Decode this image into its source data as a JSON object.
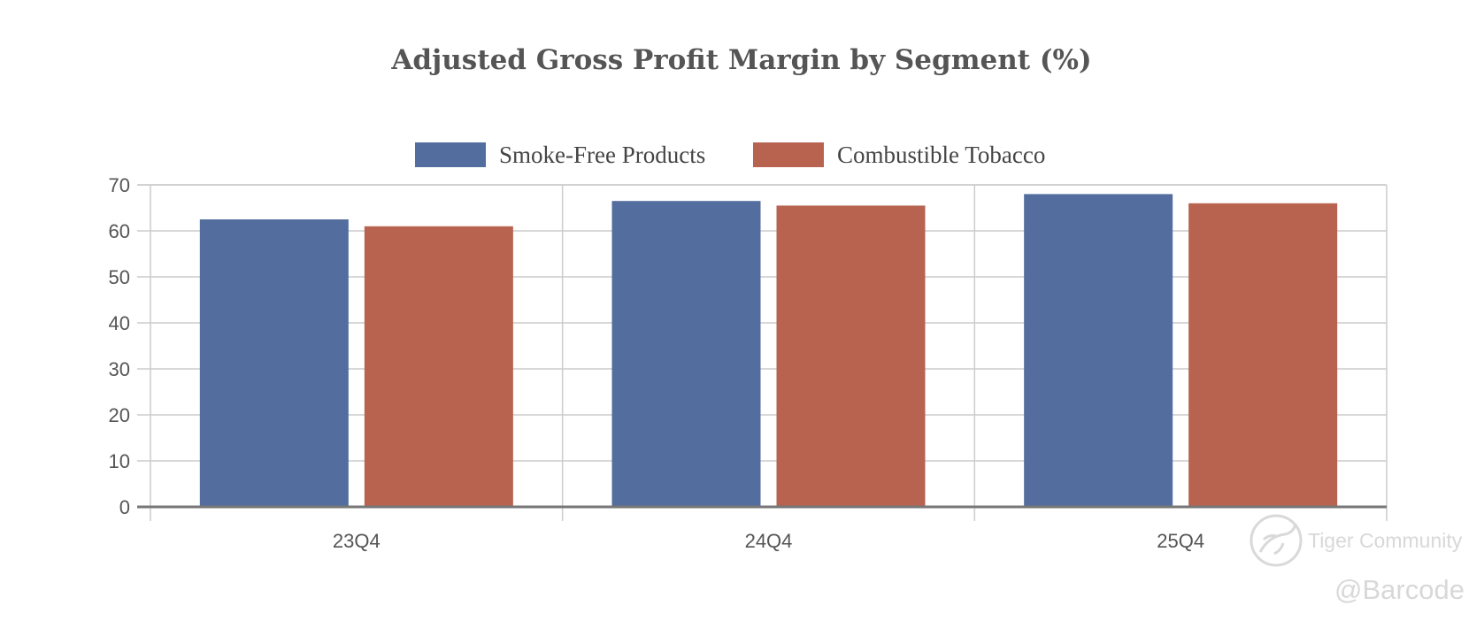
{
  "chart_data": {
    "type": "bar",
    "title": "Adjusted Gross Profit Margin by Segment (%)",
    "categories": [
      "23Q4",
      "24Q4",
      "25Q4"
    ],
    "series": [
      {
        "name": "Smoke-Free Products",
        "color": "#536d9f",
        "values": [
          62.5,
          66.5,
          68.0
        ]
      },
      {
        "name": "Combustible Tobacco",
        "color": "#b76350",
        "values": [
          61.0,
          65.5,
          66.0
        ]
      }
    ],
    "xlabel": "",
    "ylabel": "",
    "ylim": [
      0,
      70
    ],
    "yticks": [
      0,
      10,
      20,
      30,
      40,
      50,
      60,
      70
    ],
    "grid": true,
    "legend_position": "top-center"
  },
  "watermarks": {
    "brand": "Tiger Community",
    "handle": "@Barcode"
  }
}
